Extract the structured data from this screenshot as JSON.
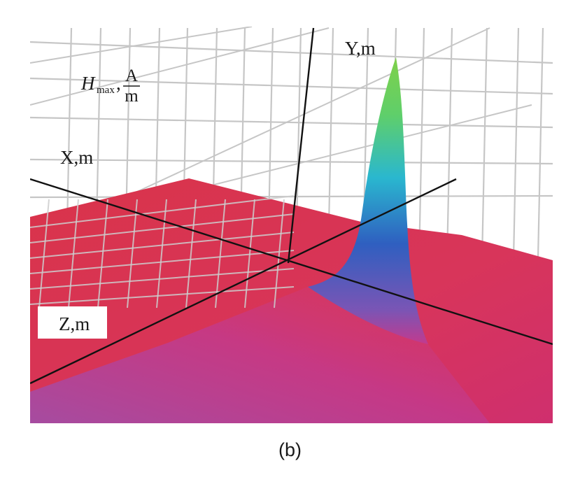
{
  "chart_data": {
    "type": "surface",
    "axes": {
      "x_label": "X,m",
      "y_label": "Y,m",
      "z_label": "Z,m",
      "value_label": {
        "symbol": "H",
        "subscript": "max",
        "unit_numerator": "A",
        "unit_denominator": "m"
      }
    },
    "surface": {
      "description": "flat red plane with a single sharp peak",
      "base_color": "#d9334a",
      "gradient_colors": [
        "#d42d5a",
        "#c23a8e",
        "#7a55b5",
        "#2f5fc0",
        "#2ab7cf",
        "#5fcf6a",
        "#7fd04a"
      ]
    },
    "grid": true
  },
  "caption": "(b)"
}
